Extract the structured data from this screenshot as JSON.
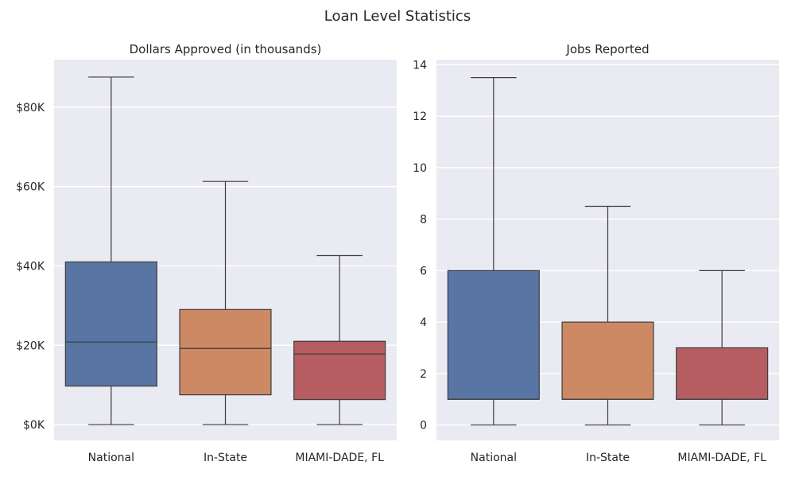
{
  "figure": {
    "title": "Loan Level Statistics"
  },
  "colors": {
    "background": "#EAEAF2",
    "grid": "#FFFFFF",
    "box_edge": "#3D3D3D",
    "text": "#262626",
    "national": "#5875A4",
    "instate": "#CC8963",
    "county": "#B55D60"
  },
  "chart_data": [
    {
      "type": "box",
      "title": "Dollars Approved (in thousands)",
      "xlabel": "",
      "ylabel": "",
      "categories": [
        "National",
        "In-State",
        "MIAMI-DADE, FL"
      ],
      "tick_labels": [
        "$0K",
        "$20K",
        "$40K",
        "$60K",
        "$80K"
      ],
      "tick_values": [
        0,
        20,
        40,
        60,
        80
      ],
      "ylim": [
        -4,
        92
      ],
      "grid": true,
      "boxes": [
        {
          "name": "National",
          "whisker_low": 0,
          "q1": 9.7,
          "median": 20.8,
          "q3": 41.0,
          "whisker_high": 87.6
        },
        {
          "name": "In-State",
          "whisker_low": 0,
          "q1": 7.5,
          "median": 19.2,
          "q3": 29.0,
          "whisker_high": 61.3
        },
        {
          "name": "MIAMI-DADE, FL",
          "whisker_low": 0,
          "q1": 6.3,
          "median": 17.8,
          "q3": 21.0,
          "whisker_high": 42.6
        }
      ]
    },
    {
      "type": "box",
      "title": "Jobs Reported",
      "xlabel": "",
      "ylabel": "",
      "categories": [
        "National",
        "In-State",
        "MIAMI-DADE, FL"
      ],
      "tick_labels": [
        "0",
        "2",
        "4",
        "6",
        "8",
        "10",
        "12",
        "14"
      ],
      "tick_values": [
        0,
        2,
        4,
        6,
        8,
        10,
        12,
        14
      ],
      "ylim": [
        -0.6,
        14.2
      ],
      "grid": true,
      "boxes": [
        {
          "name": "National",
          "whisker_low": 0,
          "q1": 1,
          "median": 1,
          "q3": 6,
          "whisker_high": 13.5
        },
        {
          "name": "In-State",
          "whisker_low": 0,
          "q1": 1,
          "median": 1,
          "q3": 4,
          "whisker_high": 8.5
        },
        {
          "name": "MIAMI-DADE, FL",
          "whisker_low": 0,
          "q1": 1,
          "median": 1,
          "q3": 3,
          "whisker_high": 6
        }
      ]
    }
  ]
}
